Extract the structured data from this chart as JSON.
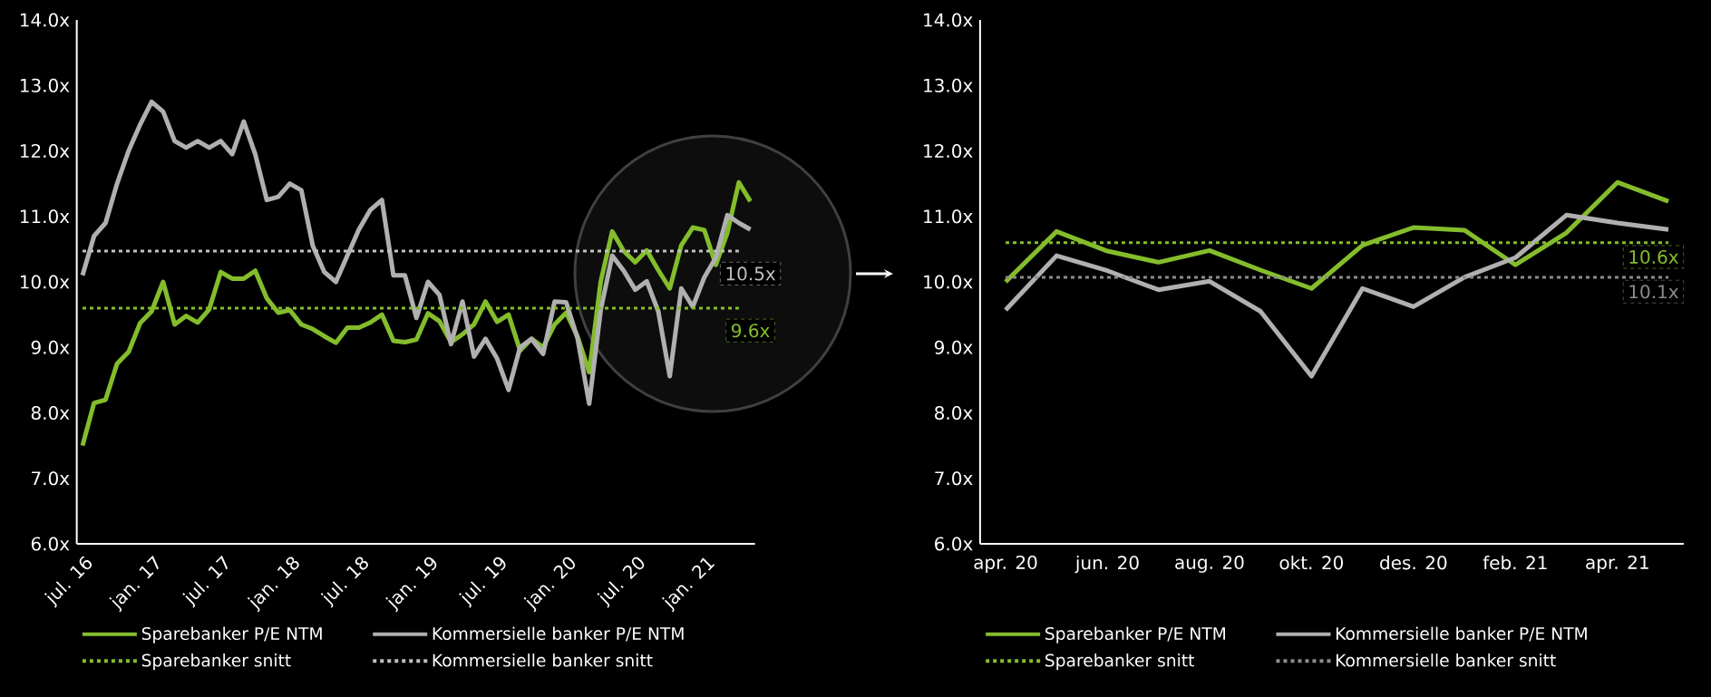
{
  "chart_data": [
    {
      "type": "line",
      "categories": [
        "jul. 16",
        null,
        null,
        null,
        null,
        null,
        "jan. 17",
        null,
        null,
        null,
        null,
        null,
        "jul. 17",
        null,
        null,
        null,
        null,
        null,
        "jan. 18",
        null,
        null,
        null,
        null,
        null,
        "jul. 18",
        null,
        null,
        null,
        null,
        null,
        "jan. 19",
        null,
        null,
        null,
        null,
        null,
        "jul. 19",
        null,
        null,
        null,
        null,
        null,
        "jan. 20",
        null,
        null,
        null,
        null,
        null,
        "jul. 20",
        null,
        null,
        null,
        null,
        null,
        "jan. 21",
        null,
        null,
        null,
        null
      ],
      "series": [
        {
          "name": "Sparebanker P/E NTM",
          "color": "#84bd2c",
          "line_style": "solid",
          "values": [
            7.5,
            8.15,
            8.2,
            8.75,
            8.93,
            9.37,
            9.55,
            10.0,
            9.35,
            9.48,
            9.38,
            9.58,
            10.15,
            10.05,
            10.05,
            10.17,
            9.75,
            9.53,
            9.57,
            9.35,
            9.28,
            9.17,
            9.07,
            9.3,
            9.3,
            9.38,
            9.5,
            9.1,
            9.08,
            9.12,
            9.52,
            9.4,
            9.08,
            9.2,
            9.35,
            9.7,
            9.39,
            9.5,
            8.95,
            9.13,
            9.0,
            9.35,
            9.53,
            9.16,
            8.62,
            10.0,
            10.77,
            10.47,
            10.3,
            10.48,
            10.18,
            9.9,
            10.56,
            10.83,
            10.79,
            10.26,
            10.75,
            11.52,
            11.23
          ]
        },
        {
          "name": "Kommersielle banker P/E NTM",
          "color": "#b0b0b0",
          "line_style": "solid",
          "values": [
            10.1,
            10.7,
            10.9,
            11.5,
            12.0,
            12.4,
            12.75,
            12.6,
            12.15,
            12.05,
            12.15,
            12.05,
            12.15,
            11.95,
            12.45,
            11.95,
            11.25,
            11.3,
            11.5,
            11.4,
            10.55,
            10.15,
            10.0,
            10.4,
            10.8,
            11.1,
            11.25,
            10.1,
            10.1,
            9.45,
            10.0,
            9.8,
            9.05,
            9.7,
            8.86,
            9.13,
            8.83,
            8.35,
            9.0,
            9.13,
            8.9,
            9.7,
            9.69,
            9.13,
            8.14,
            9.57,
            10.4,
            10.17,
            9.88,
            10.01,
            9.55,
            8.56,
            9.9,
            9.62,
            10.07,
            10.37,
            11.02,
            10.9,
            10.8
          ]
        },
        {
          "name": "Sparebanker snitt",
          "color": "#84bd2c",
          "line_style": "dashed",
          "values": [
            9.6,
            9.6,
            9.6,
            9.6,
            9.6,
            9.6,
            9.6,
            9.6,
            9.6,
            9.6,
            9.6,
            9.6,
            9.6,
            9.6,
            9.6,
            9.6,
            9.6,
            9.6,
            9.6,
            9.6,
            9.6,
            9.6,
            9.6,
            9.6,
            9.6,
            9.6,
            9.6,
            9.6,
            9.6,
            9.6,
            9.6,
            9.6,
            9.6,
            9.6,
            9.6,
            9.6,
            9.6,
            9.6,
            9.6,
            9.6,
            9.6,
            9.6,
            9.6,
            9.6,
            9.6,
            9.6,
            9.6,
            9.6,
            9.6,
            9.6,
            9.6,
            9.6,
            9.6,
            9.6,
            9.6,
            9.6,
            9.6,
            9.6,
            null
          ]
        },
        {
          "name": "Kommersielle banker snitt",
          "color": "#c0c0c0",
          "line_style": "dashed",
          "values": [
            10.47,
            10.47,
            10.47,
            10.47,
            10.47,
            10.47,
            10.47,
            10.47,
            10.47,
            10.47,
            10.47,
            10.47,
            10.47,
            10.47,
            10.47,
            10.47,
            10.47,
            10.47,
            10.47,
            10.47,
            10.47,
            10.47,
            10.47,
            10.47,
            10.47,
            10.47,
            10.47,
            10.47,
            10.47,
            10.47,
            10.47,
            10.47,
            10.47,
            10.47,
            10.47,
            10.47,
            10.47,
            10.47,
            10.47,
            10.47,
            10.47,
            10.47,
            10.47,
            10.47,
            10.47,
            10.47,
            10.47,
            10.47,
            10.47,
            10.47,
            10.47,
            10.47,
            10.47,
            10.47,
            10.47,
            10.47,
            10.47,
            10.47,
            null
          ]
        }
      ],
      "annotations": [
        "9.6x",
        "10.5x"
      ],
      "ylim": [
        6,
        14
      ],
      "yticks": [
        {
          "value": 6,
          "label": "6.0x"
        },
        {
          "value": 7,
          "label": "7.0x"
        },
        {
          "value": 8,
          "label": "8.0x"
        },
        {
          "value": 9,
          "label": "9.0x"
        },
        {
          "value": 10,
          "label": "10.0x"
        },
        {
          "value": 11,
          "label": "11.0x"
        },
        {
          "value": 12,
          "label": "12.0x"
        },
        {
          "value": 13,
          "label": "13.0x"
        },
        {
          "value": 14,
          "label": "14.0x"
        }
      ],
      "grid": false,
      "legend": "bottom"
    },
    {
      "type": "line",
      "categories": [
        "apr. 20",
        null,
        "jun. 20",
        null,
        "aug. 20",
        null,
        "okt. 20",
        null,
        "des. 20",
        null,
        "feb. 21",
        null,
        "apr. 21",
        null
      ],
      "series": [
        {
          "name": "Sparebanker P/E NTM",
          "color": "#84bd2c",
          "line_style": "solid",
          "values": [
            10.0,
            10.77,
            10.47,
            10.3,
            10.48,
            10.18,
            9.9,
            10.56,
            10.83,
            10.79,
            10.26,
            10.75,
            11.52,
            11.23
          ]
        },
        {
          "name": "Kommersielle banker P/E NTM",
          "color": "#b0b0b0",
          "line_style": "solid",
          "values": [
            9.57,
            10.4,
            10.17,
            9.88,
            10.01,
            9.55,
            8.56,
            9.9,
            9.62,
            10.07,
            10.37,
            11.02,
            10.9,
            10.8
          ]
        },
        {
          "name": "Sparebanker snitt",
          "color": "#84bd2c",
          "line_style": "dashed",
          "values": [
            10.6,
            10.6,
            10.6,
            10.6,
            10.6,
            10.6,
            10.6,
            10.6,
            10.6,
            10.6,
            10.6,
            10.6,
            10.6,
            10.6
          ]
        },
        {
          "name": "Kommersielle banker snitt",
          "color": "#8c8c8c",
          "line_style": "dashed",
          "values": [
            10.07,
            10.07,
            10.07,
            10.07,
            10.07,
            10.07,
            10.07,
            10.07,
            10.07,
            10.07,
            10.07,
            10.07,
            10.07,
            10.07
          ]
        }
      ],
      "annotations": [
        "10.6x",
        "10.1x"
      ],
      "ylim": [
        6,
        14
      ],
      "yticks": [
        {
          "value": 6,
          "label": "6.0x"
        },
        {
          "value": 7,
          "label": "7.0x"
        },
        {
          "value": 8,
          "label": "8.0x"
        },
        {
          "value": 9,
          "label": "9.0x"
        },
        {
          "value": 10,
          "label": "10.0x"
        },
        {
          "value": 11,
          "label": "11.0x"
        },
        {
          "value": 12,
          "label": "12.0x"
        },
        {
          "value": 13,
          "label": "13.0x"
        },
        {
          "value": 14,
          "label": "14.0x"
        }
      ],
      "grid": false,
      "legend": "bottom"
    }
  ]
}
